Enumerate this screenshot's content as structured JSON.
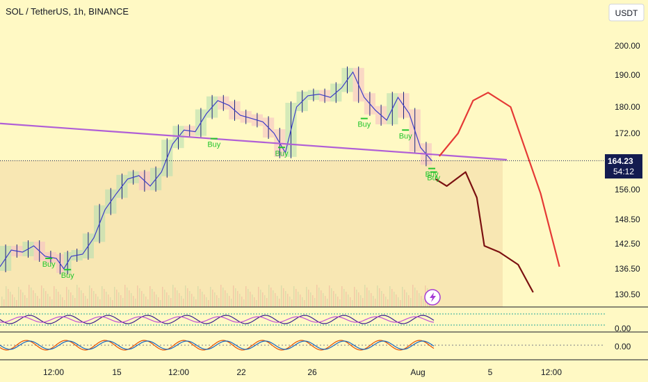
{
  "chart_data": {
    "type": "line",
    "title": "SOL / TetherUS, 1h, BINANCE",
    "currency_button": "USDT",
    "price_axis": {
      "ticks": [
        200.0,
        190.0,
        180.0,
        172.0,
        156.0,
        148.5,
        142.5,
        136.5,
        130.5
      ],
      "labels": [
        "200.00",
        "190.00",
        "180.00",
        "172.00",
        "156.00",
        "148.50",
        "142.50",
        "136.50",
        "130.50"
      ]
    },
    "time_axis": {
      "labels": [
        "12:00",
        "15",
        "12:00",
        "22",
        "26",
        "Aug",
        "5",
        "12:00"
      ]
    },
    "current_price": {
      "value": 164.23,
      "label": "164.23",
      "countdown": "54:12",
      "color": "#131c50"
    },
    "buy_signal_label": "Buy",
    "buy_signals": [
      {
        "time": 0.13,
        "price": 139.0
      },
      {
        "time": 0.18,
        "price": 136.3
      },
      {
        "time": 0.57,
        "price": 170.5
      },
      {
        "time": 0.75,
        "price": 168.0
      },
      {
        "time": 0.97,
        "price": 176.5
      },
      {
        "time": 1.08,
        "price": 173.0
      },
      {
        "time": 1.15,
        "price": 162.0
      },
      {
        "time": 1.155,
        "price": 161.0
      }
    ],
    "price_series": {
      "time": [
        0.0,
        0.03,
        0.06,
        0.09,
        0.12,
        0.15,
        0.17,
        0.19,
        0.22,
        0.25,
        0.28,
        0.31,
        0.34,
        0.37,
        0.4,
        0.43,
        0.46,
        0.49,
        0.52,
        0.55,
        0.58,
        0.61,
        0.64,
        0.67,
        0.7,
        0.73,
        0.76,
        0.79,
        0.82,
        0.85,
        0.88,
        0.91,
        0.94,
        0.97,
        1.0,
        1.03,
        1.06,
        1.09,
        1.12,
        1.15
      ],
      "price": [
        137.0,
        141.0,
        140.5,
        142.0,
        139.5,
        139.0,
        136.5,
        139.5,
        140.0,
        144.0,
        151.0,
        155.0,
        159.0,
        160.0,
        157.0,
        161.0,
        169.0,
        173.0,
        172.5,
        178.0,
        182.0,
        180.5,
        177.5,
        176.5,
        175.5,
        172.0,
        166.5,
        180.0,
        183.5,
        184.0,
        183.0,
        186.0,
        191.0,
        183.0,
        179.0,
        176.0,
        183.0,
        178.0,
        168.0,
        164.23
      ]
    },
    "trendline": {
      "from": {
        "time": 0.0,
        "price": 175.0
      },
      "to": {
        "time": 1.35,
        "price": 164.5
      },
      "color": "#b05fd6"
    },
    "projections": [
      {
        "color": "#e53935",
        "time": [
          1.17,
          1.22,
          1.26,
          1.3,
          1.36,
          1.44,
          1.49
        ],
        "price": [
          165.5,
          172.0,
          182.0,
          184.5,
          180.0,
          155.0,
          137.0
        ]
      },
      {
        "color": "#7b1010",
        "time": [
          1.16,
          1.19,
          1.24,
          1.27,
          1.29,
          1.33,
          1.38,
          1.42
        ],
        "price": [
          159.0,
          157.0,
          161.0,
          154.0,
          142.0,
          140.5,
          137.5,
          131.0
        ]
      }
    ],
    "oscillators": [
      {
        "name": "",
        "axis_label": "0.00"
      },
      {
        "name": "",
        "axis_label": "0.00"
      }
    ]
  }
}
